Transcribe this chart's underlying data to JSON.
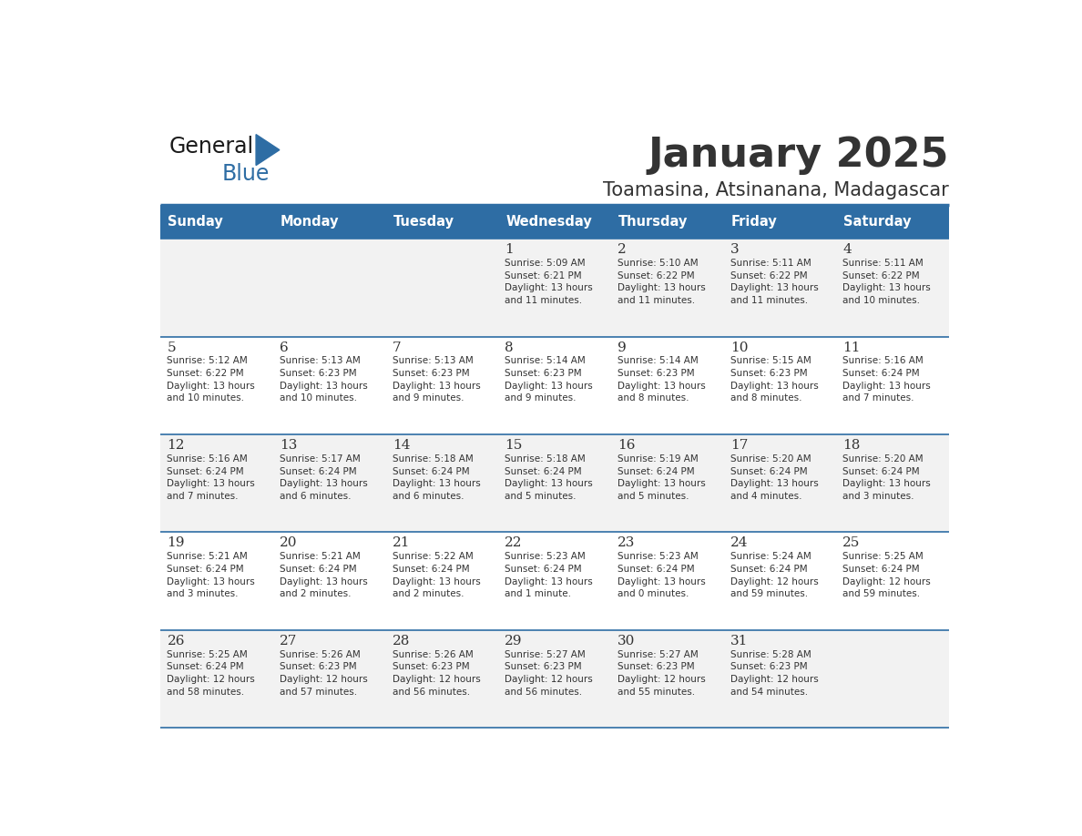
{
  "title": "January 2025",
  "subtitle": "Toamasina, Atsinanana, Madagascar",
  "header_bg_color": "#2E6DA4",
  "header_text_color": "#FFFFFF",
  "cell_bg_color_odd": "#F2F2F2",
  "cell_bg_color_even": "#FFFFFF",
  "divider_color": "#2E6DA4",
  "text_color": "#333333",
  "days_of_week": [
    "Sunday",
    "Monday",
    "Tuesday",
    "Wednesday",
    "Thursday",
    "Friday",
    "Saturday"
  ],
  "calendar_data": [
    [
      {
        "day": "",
        "info": ""
      },
      {
        "day": "",
        "info": ""
      },
      {
        "day": "",
        "info": ""
      },
      {
        "day": "1",
        "info": "Sunrise: 5:09 AM\nSunset: 6:21 PM\nDaylight: 13 hours\nand 11 minutes."
      },
      {
        "day": "2",
        "info": "Sunrise: 5:10 AM\nSunset: 6:22 PM\nDaylight: 13 hours\nand 11 minutes."
      },
      {
        "day": "3",
        "info": "Sunrise: 5:11 AM\nSunset: 6:22 PM\nDaylight: 13 hours\nand 11 minutes."
      },
      {
        "day": "4",
        "info": "Sunrise: 5:11 AM\nSunset: 6:22 PM\nDaylight: 13 hours\nand 10 minutes."
      }
    ],
    [
      {
        "day": "5",
        "info": "Sunrise: 5:12 AM\nSunset: 6:22 PM\nDaylight: 13 hours\nand 10 minutes."
      },
      {
        "day": "6",
        "info": "Sunrise: 5:13 AM\nSunset: 6:23 PM\nDaylight: 13 hours\nand 10 minutes."
      },
      {
        "day": "7",
        "info": "Sunrise: 5:13 AM\nSunset: 6:23 PM\nDaylight: 13 hours\nand 9 minutes."
      },
      {
        "day": "8",
        "info": "Sunrise: 5:14 AM\nSunset: 6:23 PM\nDaylight: 13 hours\nand 9 minutes."
      },
      {
        "day": "9",
        "info": "Sunrise: 5:14 AM\nSunset: 6:23 PM\nDaylight: 13 hours\nand 8 minutes."
      },
      {
        "day": "10",
        "info": "Sunrise: 5:15 AM\nSunset: 6:23 PM\nDaylight: 13 hours\nand 8 minutes."
      },
      {
        "day": "11",
        "info": "Sunrise: 5:16 AM\nSunset: 6:24 PM\nDaylight: 13 hours\nand 7 minutes."
      }
    ],
    [
      {
        "day": "12",
        "info": "Sunrise: 5:16 AM\nSunset: 6:24 PM\nDaylight: 13 hours\nand 7 minutes."
      },
      {
        "day": "13",
        "info": "Sunrise: 5:17 AM\nSunset: 6:24 PM\nDaylight: 13 hours\nand 6 minutes."
      },
      {
        "day": "14",
        "info": "Sunrise: 5:18 AM\nSunset: 6:24 PM\nDaylight: 13 hours\nand 6 minutes."
      },
      {
        "day": "15",
        "info": "Sunrise: 5:18 AM\nSunset: 6:24 PM\nDaylight: 13 hours\nand 5 minutes."
      },
      {
        "day": "16",
        "info": "Sunrise: 5:19 AM\nSunset: 6:24 PM\nDaylight: 13 hours\nand 5 minutes."
      },
      {
        "day": "17",
        "info": "Sunrise: 5:20 AM\nSunset: 6:24 PM\nDaylight: 13 hours\nand 4 minutes."
      },
      {
        "day": "18",
        "info": "Sunrise: 5:20 AM\nSunset: 6:24 PM\nDaylight: 13 hours\nand 3 minutes."
      }
    ],
    [
      {
        "day": "19",
        "info": "Sunrise: 5:21 AM\nSunset: 6:24 PM\nDaylight: 13 hours\nand 3 minutes."
      },
      {
        "day": "20",
        "info": "Sunrise: 5:21 AM\nSunset: 6:24 PM\nDaylight: 13 hours\nand 2 minutes."
      },
      {
        "day": "21",
        "info": "Sunrise: 5:22 AM\nSunset: 6:24 PM\nDaylight: 13 hours\nand 2 minutes."
      },
      {
        "day": "22",
        "info": "Sunrise: 5:23 AM\nSunset: 6:24 PM\nDaylight: 13 hours\nand 1 minute."
      },
      {
        "day": "23",
        "info": "Sunrise: 5:23 AM\nSunset: 6:24 PM\nDaylight: 13 hours\nand 0 minutes."
      },
      {
        "day": "24",
        "info": "Sunrise: 5:24 AM\nSunset: 6:24 PM\nDaylight: 12 hours\nand 59 minutes."
      },
      {
        "day": "25",
        "info": "Sunrise: 5:25 AM\nSunset: 6:24 PM\nDaylight: 12 hours\nand 59 minutes."
      }
    ],
    [
      {
        "day": "26",
        "info": "Sunrise: 5:25 AM\nSunset: 6:24 PM\nDaylight: 12 hours\nand 58 minutes."
      },
      {
        "day": "27",
        "info": "Sunrise: 5:26 AM\nSunset: 6:23 PM\nDaylight: 12 hours\nand 57 minutes."
      },
      {
        "day": "28",
        "info": "Sunrise: 5:26 AM\nSunset: 6:23 PM\nDaylight: 12 hours\nand 56 minutes."
      },
      {
        "day": "29",
        "info": "Sunrise: 5:27 AM\nSunset: 6:23 PM\nDaylight: 12 hours\nand 56 minutes."
      },
      {
        "day": "30",
        "info": "Sunrise: 5:27 AM\nSunset: 6:23 PM\nDaylight: 12 hours\nand 55 minutes."
      },
      {
        "day": "31",
        "info": "Sunrise: 5:28 AM\nSunset: 6:23 PM\nDaylight: 12 hours\nand 54 minutes."
      },
      {
        "day": "",
        "info": ""
      }
    ]
  ],
  "logo_text_general": "General",
  "logo_text_blue": "Blue",
  "logo_color_general": "#1a1a1a",
  "logo_color_blue": "#2E6DA4",
  "logo_triangle_color": "#2E6DA4"
}
